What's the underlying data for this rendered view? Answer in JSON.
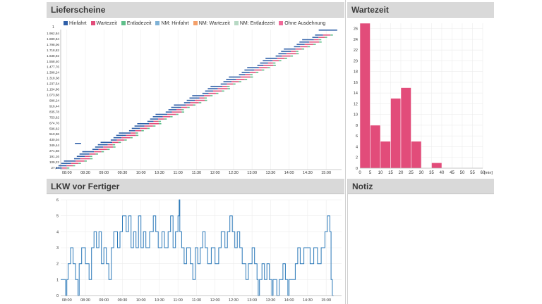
{
  "panels": {
    "lieferscheine": {
      "title": "Lieferscheine"
    },
    "wartezeit": {
      "title": "Wartezeit"
    },
    "lkw": {
      "title": "LKW vor Fertiger"
    },
    "notiz": {
      "title": "Notiz"
    }
  },
  "colors": {
    "header_bg": "#d9d9d9",
    "hinfahrt": "#2f5fa8",
    "wartezeit": "#e24c7a",
    "entladezeit": "#5fbf8a",
    "nm_hinfahrt": "#7fb2d6",
    "nm_wartezeit": "#f4a06a",
    "nm_entladezeit": "#b7d9c4",
    "ohne_ausdehnung": "#f06a9a",
    "histogram": "#e24c7a",
    "lkw_line": "#2a78b8"
  },
  "chart_data": [
    {
      "type": "bar",
      "name": "lieferscheine-gantt",
      "legend": [
        {
          "label": "Hinfahrt",
          "color": "#2f5fa8"
        },
        {
          "label": "Wartezeit",
          "color": "#e24c7a"
        },
        {
          "label": "Entladezeit",
          "color": "#5fbf8a"
        },
        {
          "label": "NM: Hinfahrt",
          "color": "#7fb2d6"
        },
        {
          "label": "NM: Wartezeit",
          "color": "#f4a06a"
        },
        {
          "label": "NM: Entladezeit",
          "color": "#b7d9c4"
        },
        {
          "label": "Ohne Ausdehnung",
          "color": "#f06a9a"
        }
      ],
      "y_tick_labels": [
        "27,84",
        "109,22",
        "191,16",
        "271,68",
        "349,44",
        "430,04",
        "510,96",
        "596,62",
        "674,76",
        "753,62",
        "835,78",
        "916,44",
        "996,24",
        "1.073,88",
        "1.154,86",
        "1.237,54",
        "1.318,38",
        "1.396,24",
        "1.477,76",
        "1.558,40",
        "1.638,92",
        "1.718,82",
        "1.798,06",
        "1.880,84",
        "1.962,84"
      ],
      "y_top_label": "1",
      "x_tick_labels": [
        "08:00",
        "08:30",
        "09:00",
        "09:30",
        "10:00",
        "10:30",
        "11:00",
        "11:30",
        "12:00",
        "12:30",
        "13:00",
        "13:30",
        "14:00",
        "14:30",
        "15:00"
      ],
      "xlim": [
        "07:50",
        "15:25"
      ]
    },
    {
      "type": "bar",
      "name": "wartezeit-histogram",
      "categories": [
        "0-5",
        "5-10",
        "10-15",
        "15-20",
        "20-25",
        "25-30",
        "30-35",
        "35-40",
        "40-45",
        "45-50",
        "50-55",
        "55-60"
      ],
      "values": [
        27,
        8,
        5,
        13,
        15,
        5,
        0,
        1,
        0,
        0,
        0,
        0
      ],
      "x_tick_labels": [
        "0",
        "5",
        "10",
        "15",
        "20",
        "25",
        "30",
        "35",
        "40",
        "45",
        "50",
        "55",
        "60"
      ],
      "xunit": "[min]",
      "y_tick_labels": [
        "0",
        "2",
        "4",
        "6",
        "8",
        "10",
        "12",
        "14",
        "16",
        "18",
        "20",
        "22",
        "24",
        "26"
      ],
      "ylim": [
        0,
        27
      ],
      "xlim": [
        0,
        60
      ]
    },
    {
      "type": "line",
      "name": "lkw-vor-fertiger",
      "x_tick_labels": [
        "08:00",
        "08:30",
        "09:00",
        "09:30",
        "10:00",
        "10:30",
        "11:00",
        "11:30",
        "12:00",
        "12:30",
        "13:00",
        "13:30",
        "14:00",
        "14:30",
        "15:00"
      ],
      "y_tick_labels": [
        "0",
        "1",
        "2",
        "3",
        "4",
        "5",
        "6"
      ],
      "ylim": [
        0,
        6
      ],
      "xlim": [
        "07:50",
        "15:25"
      ],
      "points": [
        [
          "07:50",
          1
        ],
        [
          "07:58",
          1
        ],
        [
          "07:58",
          0
        ],
        [
          "08:00",
          0
        ],
        [
          "08:00",
          1
        ],
        [
          "08:02",
          1
        ],
        [
          "08:02",
          2
        ],
        [
          "08:06",
          2
        ],
        [
          "08:06",
          3
        ],
        [
          "08:10",
          3
        ],
        [
          "08:10",
          2
        ],
        [
          "08:14",
          2
        ],
        [
          "08:14",
          1
        ],
        [
          "08:18",
          1
        ],
        [
          "08:18",
          0
        ],
        [
          "08:20",
          0
        ],
        [
          "08:20",
          2
        ],
        [
          "08:24",
          2
        ],
        [
          "08:24",
          3
        ],
        [
          "08:30",
          3
        ],
        [
          "08:30",
          2
        ],
        [
          "08:36",
          2
        ],
        [
          "08:36",
          1
        ],
        [
          "08:40",
          1
        ],
        [
          "08:40",
          3
        ],
        [
          "08:44",
          3
        ],
        [
          "08:44",
          4
        ],
        [
          "08:48",
          4
        ],
        [
          "08:48",
          3
        ],
        [
          "08:52",
          3
        ],
        [
          "08:52",
          4
        ],
        [
          "08:56",
          4
        ],
        [
          "08:56",
          2
        ],
        [
          "09:00",
          2
        ],
        [
          "09:00",
          3
        ],
        [
          "09:04",
          3
        ],
        [
          "09:04",
          2
        ],
        [
          "09:08",
          2
        ],
        [
          "09:08",
          1
        ],
        [
          "09:12",
          1
        ],
        [
          "09:12",
          3
        ],
        [
          "09:16",
          3
        ],
        [
          "09:16",
          4
        ],
        [
          "09:22",
          4
        ],
        [
          "09:22",
          3
        ],
        [
          "09:26",
          3
        ],
        [
          "09:26",
          4
        ],
        [
          "09:30",
          4
        ],
        [
          "09:30",
          5
        ],
        [
          "09:36",
          5
        ],
        [
          "09:36",
          4
        ],
        [
          "09:40",
          4
        ],
        [
          "09:40",
          5
        ],
        [
          "09:44",
          5
        ],
        [
          "09:44",
          3
        ],
        [
          "09:48",
          3
        ],
        [
          "09:48",
          4
        ],
        [
          "09:52",
          4
        ],
        [
          "09:52",
          3
        ],
        [
          "09:56",
          3
        ],
        [
          "09:56",
          5
        ],
        [
          "10:00",
          5
        ],
        [
          "10:00",
          3
        ],
        [
          "10:04",
          3
        ],
        [
          "10:04",
          4
        ],
        [
          "10:08",
          4
        ],
        [
          "10:08",
          3
        ],
        [
          "10:14",
          3
        ],
        [
          "10:14",
          4
        ],
        [
          "10:20",
          4
        ],
        [
          "10:20",
          5
        ],
        [
          "10:24",
          5
        ],
        [
          "10:24",
          4
        ],
        [
          "10:28",
          4
        ],
        [
          "10:28",
          3
        ],
        [
          "10:34",
          3
        ],
        [
          "10:34",
          4
        ],
        [
          "10:38",
          4
        ],
        [
          "10:38",
          3
        ],
        [
          "10:44",
          3
        ],
        [
          "10:44",
          4
        ],
        [
          "10:48",
          4
        ],
        [
          "10:48",
          5
        ],
        [
          "10:52",
          5
        ],
        [
          "10:52",
          3
        ],
        [
          "10:56",
          3
        ],
        [
          "10:56",
          4
        ],
        [
          "11:00",
          4
        ],
        [
          "11:00",
          5
        ],
        [
          "11:02",
          5
        ],
        [
          "11:02",
          6
        ],
        [
          "11:03",
          6
        ],
        [
          "11:03",
          4
        ],
        [
          "11:06",
          4
        ],
        [
          "11:06",
          3
        ],
        [
          "11:10",
          3
        ],
        [
          "11:10",
          2
        ],
        [
          "11:14",
          2
        ],
        [
          "11:14",
          3
        ],
        [
          "11:20",
          3
        ],
        [
          "11:20",
          2
        ],
        [
          "11:24",
          2
        ],
        [
          "11:24",
          1
        ],
        [
          "11:28",
          1
        ],
        [
          "11:28",
          3
        ],
        [
          "11:32",
          3
        ],
        [
          "11:32",
          2
        ],
        [
          "11:36",
          2
        ],
        [
          "11:36",
          3
        ],
        [
          "11:40",
          3
        ],
        [
          "11:40",
          4
        ],
        [
          "11:44",
          4
        ],
        [
          "11:44",
          3
        ],
        [
          "11:48",
          3
        ],
        [
          "11:48",
          2
        ],
        [
          "11:54",
          2
        ],
        [
          "11:54",
          3
        ],
        [
          "12:00",
          3
        ],
        [
          "12:00",
          2
        ],
        [
          "12:06",
          2
        ],
        [
          "12:06",
          3
        ],
        [
          "12:10",
          3
        ],
        [
          "12:10",
          4
        ],
        [
          "12:16",
          4
        ],
        [
          "12:16",
          3
        ],
        [
          "12:20",
          3
        ],
        [
          "12:20",
          4
        ],
        [
          "12:24",
          4
        ],
        [
          "12:24",
          5
        ],
        [
          "12:28",
          5
        ],
        [
          "12:28",
          4
        ],
        [
          "12:32",
          4
        ],
        [
          "12:32",
          3
        ],
        [
          "12:36",
          3
        ],
        [
          "12:36",
          4
        ],
        [
          "12:40",
          4
        ],
        [
          "12:40",
          3
        ],
        [
          "12:44",
          3
        ],
        [
          "12:44",
          2
        ],
        [
          "12:50",
          2
        ],
        [
          "12:50",
          1
        ],
        [
          "12:54",
          1
        ],
        [
          "12:54",
          2
        ],
        [
          "13:00",
          2
        ],
        [
          "13:00",
          3
        ],
        [
          "13:04",
          3
        ],
        [
          "13:04",
          2
        ],
        [
          "13:08",
          2
        ],
        [
          "13:08",
          1
        ],
        [
          "13:10",
          1
        ],
        [
          "13:10",
          0
        ],
        [
          "13:12",
          0
        ],
        [
          "13:12",
          1
        ],
        [
          "13:16",
          1
        ],
        [
          "13:16",
          2
        ],
        [
          "13:20",
          2
        ],
        [
          "13:20",
          1
        ],
        [
          "13:24",
          1
        ],
        [
          "13:24",
          2
        ],
        [
          "13:28",
          2
        ],
        [
          "13:28",
          1
        ],
        [
          "13:32",
          1
        ],
        [
          "13:32",
          0
        ],
        [
          "13:34",
          0
        ],
        [
          "13:34",
          1
        ],
        [
          "13:40",
          1
        ],
        [
          "13:40",
          0
        ],
        [
          "13:44",
          0
        ],
        [
          "13:44",
          1
        ],
        [
          "13:50",
          1
        ],
        [
          "13:50",
          2
        ],
        [
          "13:54",
          2
        ],
        [
          "13:54",
          1
        ],
        [
          "13:58",
          1
        ],
        [
          "13:58",
          0
        ],
        [
          "14:00",
          0
        ],
        [
          "14:00",
          1
        ],
        [
          "14:10",
          1
        ],
        [
          "14:10",
          2
        ],
        [
          "14:14",
          2
        ],
        [
          "14:14",
          3
        ],
        [
          "14:18",
          3
        ],
        [
          "14:18",
          2
        ],
        [
          "14:24",
          2
        ],
        [
          "14:24",
          3
        ],
        [
          "14:34",
          3
        ],
        [
          "14:34",
          2
        ],
        [
          "14:40",
          2
        ],
        [
          "14:40",
          3
        ],
        [
          "14:46",
          3
        ],
        [
          "14:46",
          2
        ],
        [
          "14:52",
          2
        ],
        [
          "14:52",
          3
        ],
        [
          "14:58",
          3
        ],
        [
          "14:58",
          4
        ],
        [
          "15:02",
          4
        ],
        [
          "15:02",
          5
        ],
        [
          "15:06",
          5
        ],
        [
          "15:06",
          4
        ],
        [
          "15:08",
          4
        ],
        [
          "15:08",
          1
        ],
        [
          "15:10",
          1
        ],
        [
          "15:10",
          0
        ],
        [
          "15:12",
          0
        ]
      ]
    }
  ]
}
